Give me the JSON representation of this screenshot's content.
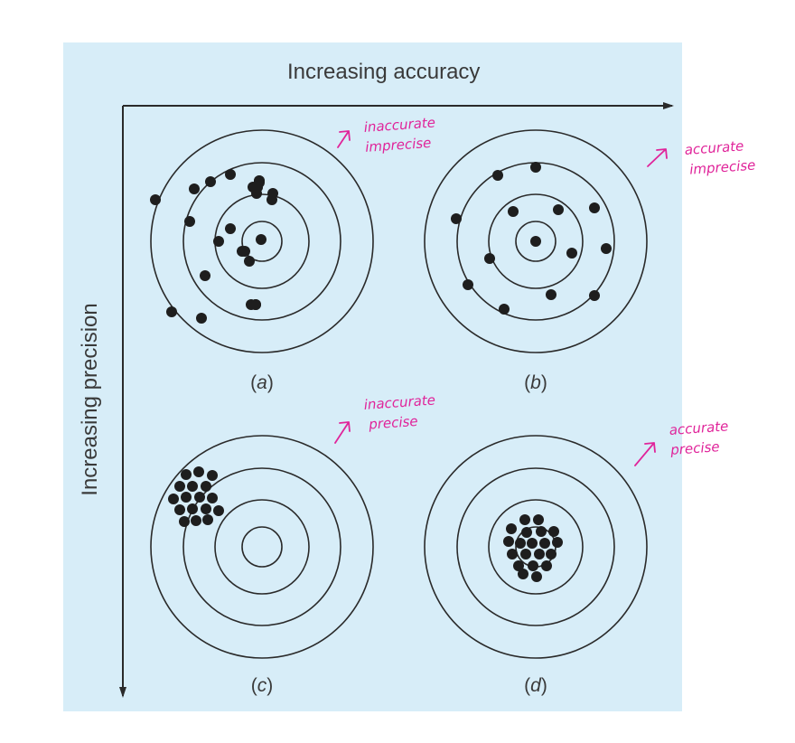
{
  "axes": {
    "x_title": "Increasing accuracy",
    "y_title": "Increasing precision"
  },
  "colors": {
    "panel": "#d7edf8",
    "ink": "#2a2a2a",
    "annotation": "#e0249a"
  },
  "targets": [
    {
      "id": "a",
      "label": "a",
      "notes": [
        "inaccurate",
        "imprecise"
      ],
      "shots": [
        [
          -75,
          -58
        ],
        [
          -35,
          -74
        ],
        [
          -57,
          -66
        ],
        [
          -118,
          -46
        ],
        [
          -80,
          -22
        ],
        [
          -35,
          -14
        ],
        [
          -6,
          -53
        ],
        [
          11,
          -46
        ],
        [
          -14,
          22
        ],
        [
          -63,
          38
        ],
        [
          -67,
          85
        ],
        [
          -100,
          78
        ],
        [
          -5,
          -60
        ],
        [
          -10,
          -60
        ],
        [
          -22,
          11
        ],
        [
          -19,
          11
        ],
        [
          -3,
          -67
        ],
        [
          -3,
          -67
        ],
        [
          -7,
          70
        ],
        [
          -7,
          70
        ],
        [
          -12,
          70
        ],
        [
          -48,
          0
        ],
        [
          -5,
          -60
        ],
        [
          -3,
          -65
        ],
        [
          12,
          -53
        ],
        [
          -1,
          -2
        ]
      ]
    },
    {
      "id": "b",
      "label": "b",
      "notes": [
        "accurate",
        "imprecise"
      ],
      "shots": [
        [
          -42,
          -73
        ],
        [
          0,
          -82
        ],
        [
          -88,
          -25
        ],
        [
          -25,
          -33
        ],
        [
          25,
          -35
        ],
        [
          65,
          -37
        ],
        [
          -51,
          19
        ],
        [
          40,
          13
        ],
        [
          78,
          8
        ],
        [
          -75,
          48
        ],
        [
          -35,
          75
        ],
        [
          17,
          59
        ],
        [
          65,
          60
        ],
        [
          0,
          0
        ]
      ]
    },
    {
      "id": "c",
      "label": "c",
      "notes": [
        "inaccurate",
        "precise"
      ],
      "shots": [
        [
          -84,
          -80
        ],
        [
          -70,
          -83
        ],
        [
          -55,
          -79
        ],
        [
          -91,
          -67
        ],
        [
          -77,
          -67
        ],
        [
          -62,
          -67
        ],
        [
          -98,
          -53
        ],
        [
          -84,
          -55
        ],
        [
          -69,
          -55
        ],
        [
          -55,
          -54
        ],
        [
          -91,
          -41
        ],
        [
          -77,
          -42
        ],
        [
          -62,
          -42
        ],
        [
          -48,
          -40
        ],
        [
          -86,
          -28
        ],
        [
          -73,
          -29
        ],
        [
          -60,
          -30
        ]
      ]
    },
    {
      "id": "d",
      "label": "d",
      "notes": [
        "accurate",
        "precise"
      ],
      "shots": [
        [
          -12,
          -30
        ],
        [
          3,
          -30
        ],
        [
          -27,
          -20
        ],
        [
          -10,
          -16
        ],
        [
          6,
          -17
        ],
        [
          20,
          -17
        ],
        [
          -30,
          -6
        ],
        [
          -17,
          -4
        ],
        [
          -4,
          -4
        ],
        [
          10,
          -4
        ],
        [
          24,
          -5
        ],
        [
          -26,
          8
        ],
        [
          -11,
          8
        ],
        [
          4,
          8
        ],
        [
          17,
          8
        ],
        [
          -19,
          21
        ],
        [
          -3,
          21
        ],
        [
          12,
          21
        ],
        [
          -14,
          30
        ],
        [
          1,
          33
        ]
      ]
    }
  ]
}
